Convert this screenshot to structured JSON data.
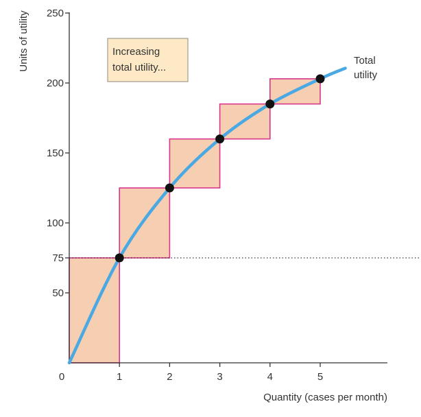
{
  "chart_data": {
    "type": "line",
    "title": "",
    "xlabel": "Quantity (cases per month)",
    "ylabel": "Units of utility",
    "xlim": [
      0,
      6.3
    ],
    "ylim": [
      0,
      250
    ],
    "x_ticks": [
      "0",
      "1",
      "2",
      "3",
      "4",
      "5"
    ],
    "x_tick_values": [
      0,
      1,
      2,
      3,
      4,
      5
    ],
    "y_ticks": [
      "50",
      "75",
      "100",
      "150",
      "200",
      "250"
    ],
    "y_tick_values": [
      50,
      75,
      100,
      150,
      200,
      250
    ],
    "series": [
      {
        "name": "Total utility",
        "label_lines": [
          "Total",
          "utility"
        ],
        "color": "#4aa8e2",
        "x": [
          0,
          1,
          2,
          3,
          4,
          5
        ],
        "y": [
          0,
          75,
          125,
          160,
          185,
          203
        ]
      }
    ],
    "points": {
      "x": [
        1,
        2,
        3,
        4,
        5
      ],
      "y": [
        75,
        125,
        160,
        185,
        203
      ],
      "color": "#111111"
    },
    "steps": {
      "fill": "#f6cfb2",
      "stroke": "#d9368b",
      "bars": [
        {
          "x0": 0,
          "x1": 1,
          "y0": 0,
          "y1": 75
        },
        {
          "x0": 1,
          "x1": 2,
          "y0": 75,
          "y1": 125
        },
        {
          "x0": 2,
          "x1": 3,
          "y0": 125,
          "y1": 160
        },
        {
          "x0": 3,
          "x1": 4,
          "y0": 160,
          "y1": 185
        },
        {
          "x0": 4,
          "x1": 5,
          "y0": 185,
          "y1": 203
        }
      ]
    },
    "reference_line": {
      "y": 75,
      "style": "dotted"
    },
    "annotation": {
      "lines": [
        "Increasing",
        "total utility..."
      ],
      "fill": "#fde9c6",
      "stroke": "#a09a90"
    },
    "grid": false,
    "legend": "none"
  }
}
